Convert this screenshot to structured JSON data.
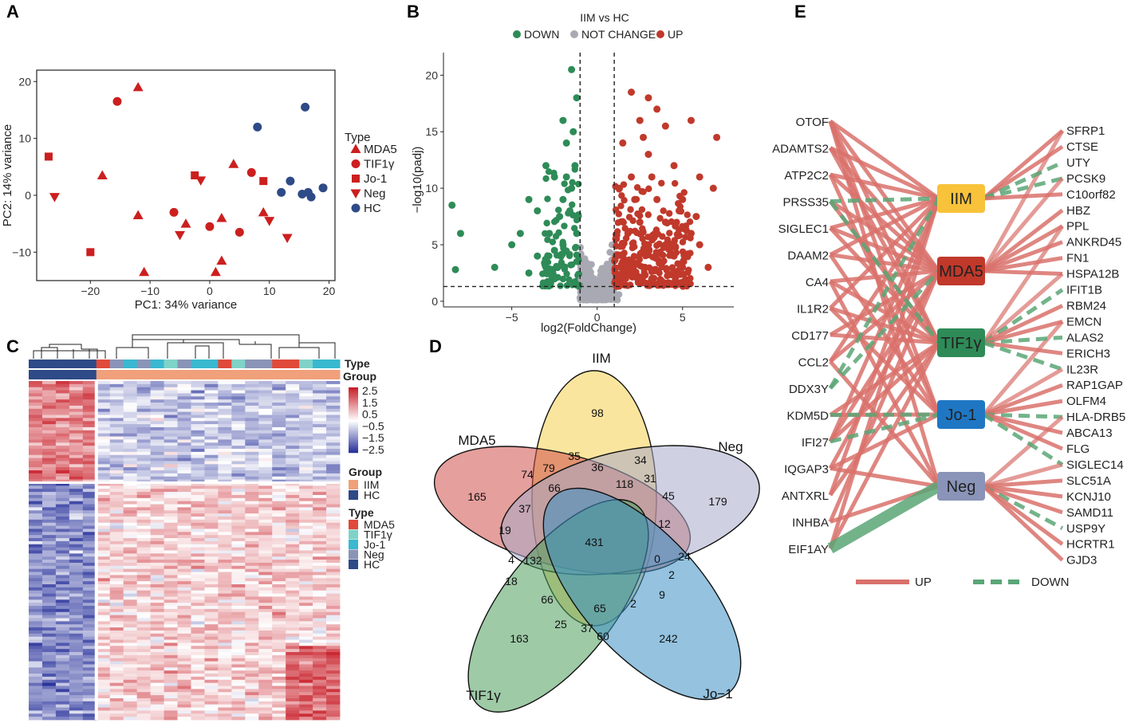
{
  "panel_labels": [
    "A",
    "B",
    "C",
    "D",
    "E"
  ],
  "colors": {
    "red": "#cc1f1f",
    "blue": "#2e4a87",
    "down": "#2e8b57",
    "up": "#c0392b",
    "nc": "#a9a9b3",
    "pink": "#f0a07a",
    "navy": "#2e4a87",
    "mda5": "#e04a3a",
    "tif1g": "#7fd3c8",
    "jo1": "#39b8d0",
    "neg": "#8a94b8",
    "hc": "#2e4a87"
  },
  "chart_data": [
    {
      "type": "scatter",
      "panel": "A",
      "xlabel": "PC1: 34% variance",
      "ylabel": "PC2: 14% variance",
      "xlim": [
        -29,
        21
      ],
      "ylim": [
        -15,
        22
      ],
      "xticks": [
        -20,
        -10,
        0,
        10,
        20
      ],
      "yticks": [
        -10,
        0,
        10,
        20
      ],
      "xtick_labels": [
        "−20",
        "−10",
        "0",
        "10",
        "20"
      ],
      "ytick_labels": [
        "−10",
        "0",
        "10",
        "20"
      ],
      "legend_title": "Type",
      "legend": [
        "MDA5",
        "TIF1γ",
        "Jo-1",
        "Neg",
        "HC"
      ],
      "series": [
        {
          "name": "MDA5",
          "shape": "triangle",
          "color": "#cc1f1f",
          "points": [
            [
              -12,
              19
            ],
            [
              -18,
              3.5
            ],
            [
              -12,
              -3.5
            ],
            [
              -11,
              -13.5
            ],
            [
              -4,
              -5
            ],
            [
              2,
              -4
            ],
            [
              4,
              5.5
            ],
            [
              9,
              -3
            ],
            [
              2,
              -11.5
            ],
            [
              1,
              -13.5
            ]
          ]
        },
        {
          "name": "TIF1γ",
          "shape": "circle",
          "color": "#cc1f1f",
          "points": [
            [
              -15.5,
              16.5
            ],
            [
              -6,
              -3
            ],
            [
              0,
              -5.5
            ],
            [
              5,
              -6.5
            ],
            [
              7,
              4
            ]
          ]
        },
        {
          "name": "Jo-1",
          "shape": "square",
          "color": "#cc1f1f",
          "points": [
            [
              -27,
              6.8
            ],
            [
              -20,
              -10
            ],
            [
              -2.5,
              3.5
            ],
            [
              9,
              2.5
            ]
          ]
        },
        {
          "name": "Neg",
          "shape": "invtriangle",
          "color": "#cc1f1f",
          "points": [
            [
              -26,
              -0.3
            ],
            [
              -5,
              -7
            ],
            [
              -1.5,
              2.6
            ],
            [
              10,
              -4.5
            ],
            [
              13,
              -7.5
            ]
          ]
        },
        {
          "name": "HC",
          "shape": "circle",
          "color": "#2e4a87",
          "points": [
            [
              8,
              12
            ],
            [
              16,
              15.5
            ],
            [
              12,
              0.5
            ],
            [
              13.5,
              2.5
            ],
            [
              15.5,
              0.2
            ],
            [
              16.5,
              0.5
            ],
            [
              17,
              -0.3
            ],
            [
              19,
              1.3
            ]
          ]
        }
      ]
    },
    {
      "type": "scatter",
      "panel": "B",
      "title": "IIM vs HC",
      "xlabel": "log2(FoldChange)",
      "ylabel": "−log10(padj)",
      "xlim": [
        -9,
        8
      ],
      "ylim": [
        -0.5,
        22
      ],
      "xticks": [
        -5,
        0,
        5
      ],
      "yticks": [
        0,
        5,
        10,
        15,
        20
      ],
      "xtick_labels": [
        "−5",
        "0",
        "5"
      ],
      "ytick_labels": [
        "0",
        "5",
        "10",
        "15",
        "20"
      ],
      "thresholds": {
        "fc": 1,
        "padj_line": 1.3
      },
      "legend": [
        "DOWN",
        "NOT CHANGE",
        "UP"
      ],
      "series": [
        {
          "name": "DOWN",
          "color": "#2e8b57",
          "points": [
            [
              -8.5,
              8.5
            ],
            [
              -8,
              6
            ],
            [
              -8.3,
              2.8
            ],
            [
              -1.5,
              20.5
            ],
            [
              -1.2,
              18
            ],
            [
              -3,
              12
            ],
            [
              -2.5,
              11
            ],
            [
              -4,
              9
            ],
            [
              -3.5,
              8
            ],
            [
              -5,
              5
            ],
            [
              -4.5,
              6
            ],
            [
              -2,
              16
            ],
            [
              -1.8,
              14
            ],
            [
              -6,
              3
            ],
            [
              -3,
              3
            ],
            [
              -2,
              5
            ],
            [
              -1.5,
              10
            ],
            [
              -2.2,
              7.5
            ],
            [
              -1.3,
              12
            ],
            [
              -2.8,
              6
            ],
            [
              -3.5,
              4
            ],
            [
              -1.6,
              8
            ],
            [
              -2,
              9
            ],
            [
              -4,
              2.5
            ],
            [
              -1.4,
              15
            ],
            [
              -2.5,
              4.5
            ],
            [
              -1.2,
              6
            ],
            [
              -1.8,
              11
            ]
          ]
        },
        {
          "name": "UP",
          "color": "#c0392b",
          "points": [
            [
              2,
              18.5
            ],
            [
              3,
              18
            ],
            [
              5.5,
              16
            ],
            [
              7,
              14.5
            ],
            [
              6.8,
              10
            ],
            [
              4,
              15.5
            ],
            [
              3.5,
              17
            ],
            [
              2.5,
              16
            ],
            [
              6,
              11
            ],
            [
              4.5,
              12
            ],
            [
              5,
              9
            ],
            [
              3,
              13
            ],
            [
              2,
              11
            ],
            [
              1.5,
              14
            ],
            [
              4,
              7
            ],
            [
              5.5,
              6
            ],
            [
              3.5,
              9
            ],
            [
              2.2,
              9
            ],
            [
              6,
              5
            ],
            [
              2.5,
              7
            ],
            [
              4,
              5
            ],
            [
              1.3,
              10
            ],
            [
              5,
              3
            ],
            [
              3,
              5
            ],
            [
              1.8,
              6
            ],
            [
              2.8,
              3
            ],
            [
              4.5,
              4
            ],
            [
              6.5,
              3
            ],
            [
              1.5,
              4
            ],
            [
              3.2,
              11
            ],
            [
              2.7,
              14.5
            ],
            [
              4.8,
              8
            ],
            [
              5.8,
              7.5
            ]
          ]
        }
      ]
    },
    {
      "type": "heatmap",
      "panel": "C",
      "top_annotation_labels": [
        "Type",
        "Group"
      ],
      "colorbar_ticks": [
        "2.5",
        "1.5",
        "0.5",
        "−0.5",
        "−1.5",
        "−2.5"
      ],
      "group_legend_title": "Group",
      "group_legend": [
        "IIM",
        "HC"
      ],
      "type_legend_title": "Type",
      "type_legend": [
        "MDA5",
        "TIF1γ",
        "Jo-1",
        "Neg",
        "HC"
      ],
      "type_strip": [
        "MDA5",
        "MDA5",
        "TIF1γ",
        "TIF1γ",
        "MDA5",
        "MDA5",
        "Neg",
        "Jo-1",
        "Neg",
        "Jo-1",
        "TIF1γ",
        "Neg",
        "Jo-1",
        "Jo-1",
        "MDA5",
        "TIF1γ",
        "Neg",
        "Neg",
        "MDA5",
        "MDA5",
        "TIF1γ",
        "Jo-1",
        "Jo-1"
      ]
    },
    {
      "type": "venn",
      "panel": "D",
      "sets": [
        "IIM",
        "MDA5",
        "Neg",
        "TIF1γ",
        "Jo−1"
      ],
      "region_values": [
        "98",
        "165",
        "179",
        "163",
        "242",
        "35",
        "34",
        "74",
        "79",
        "36",
        "66",
        "118",
        "31",
        "45",
        "37",
        "19",
        "12",
        "431",
        "4",
        "132",
        "24",
        "0",
        "2",
        "18",
        "66",
        "9",
        "65",
        "2",
        "25",
        "37",
        "60"
      ]
    },
    {
      "type": "network",
      "panel": "E",
      "hubs": [
        "IIM",
        "MDA5",
        "TIF1γ",
        "Jo-1",
        "Neg"
      ],
      "left_genes": [
        "OTOF",
        "ADAMTS2",
        "ATP2C2",
        "PRSS35",
        "SIGLEC1",
        "DAAM2",
        "CA4",
        "IL1R2",
        "CD177",
        "CCL2",
        "DDX3Y",
        "KDM5D",
        "IFI27",
        "IQGAP3",
        "ANTXRL",
        "INHBA",
        "EIF1AY"
      ],
      "right_genes": [
        "SFRP1",
        "CTSE",
        "UTY",
        "PCSK9",
        "C10orf82",
        "HBZ",
        "PPL",
        "ANKRD45",
        "FN1",
        "HSPA12B",
        "IFIT1B",
        "RBM24",
        "EMCN",
        "ALAS2",
        "ERICH3",
        "IL23R",
        "RAP1GAP",
        "OLFM4",
        "HLA-DRB5",
        "ABCA13",
        "FLG",
        "SIGLEC14",
        "SLC51A",
        "KCNJ10",
        "SAMD11",
        "USP9Y",
        "HCRTR1",
        "GJD3"
      ],
      "legend": [
        "UP",
        "DOWN"
      ]
    }
  ]
}
